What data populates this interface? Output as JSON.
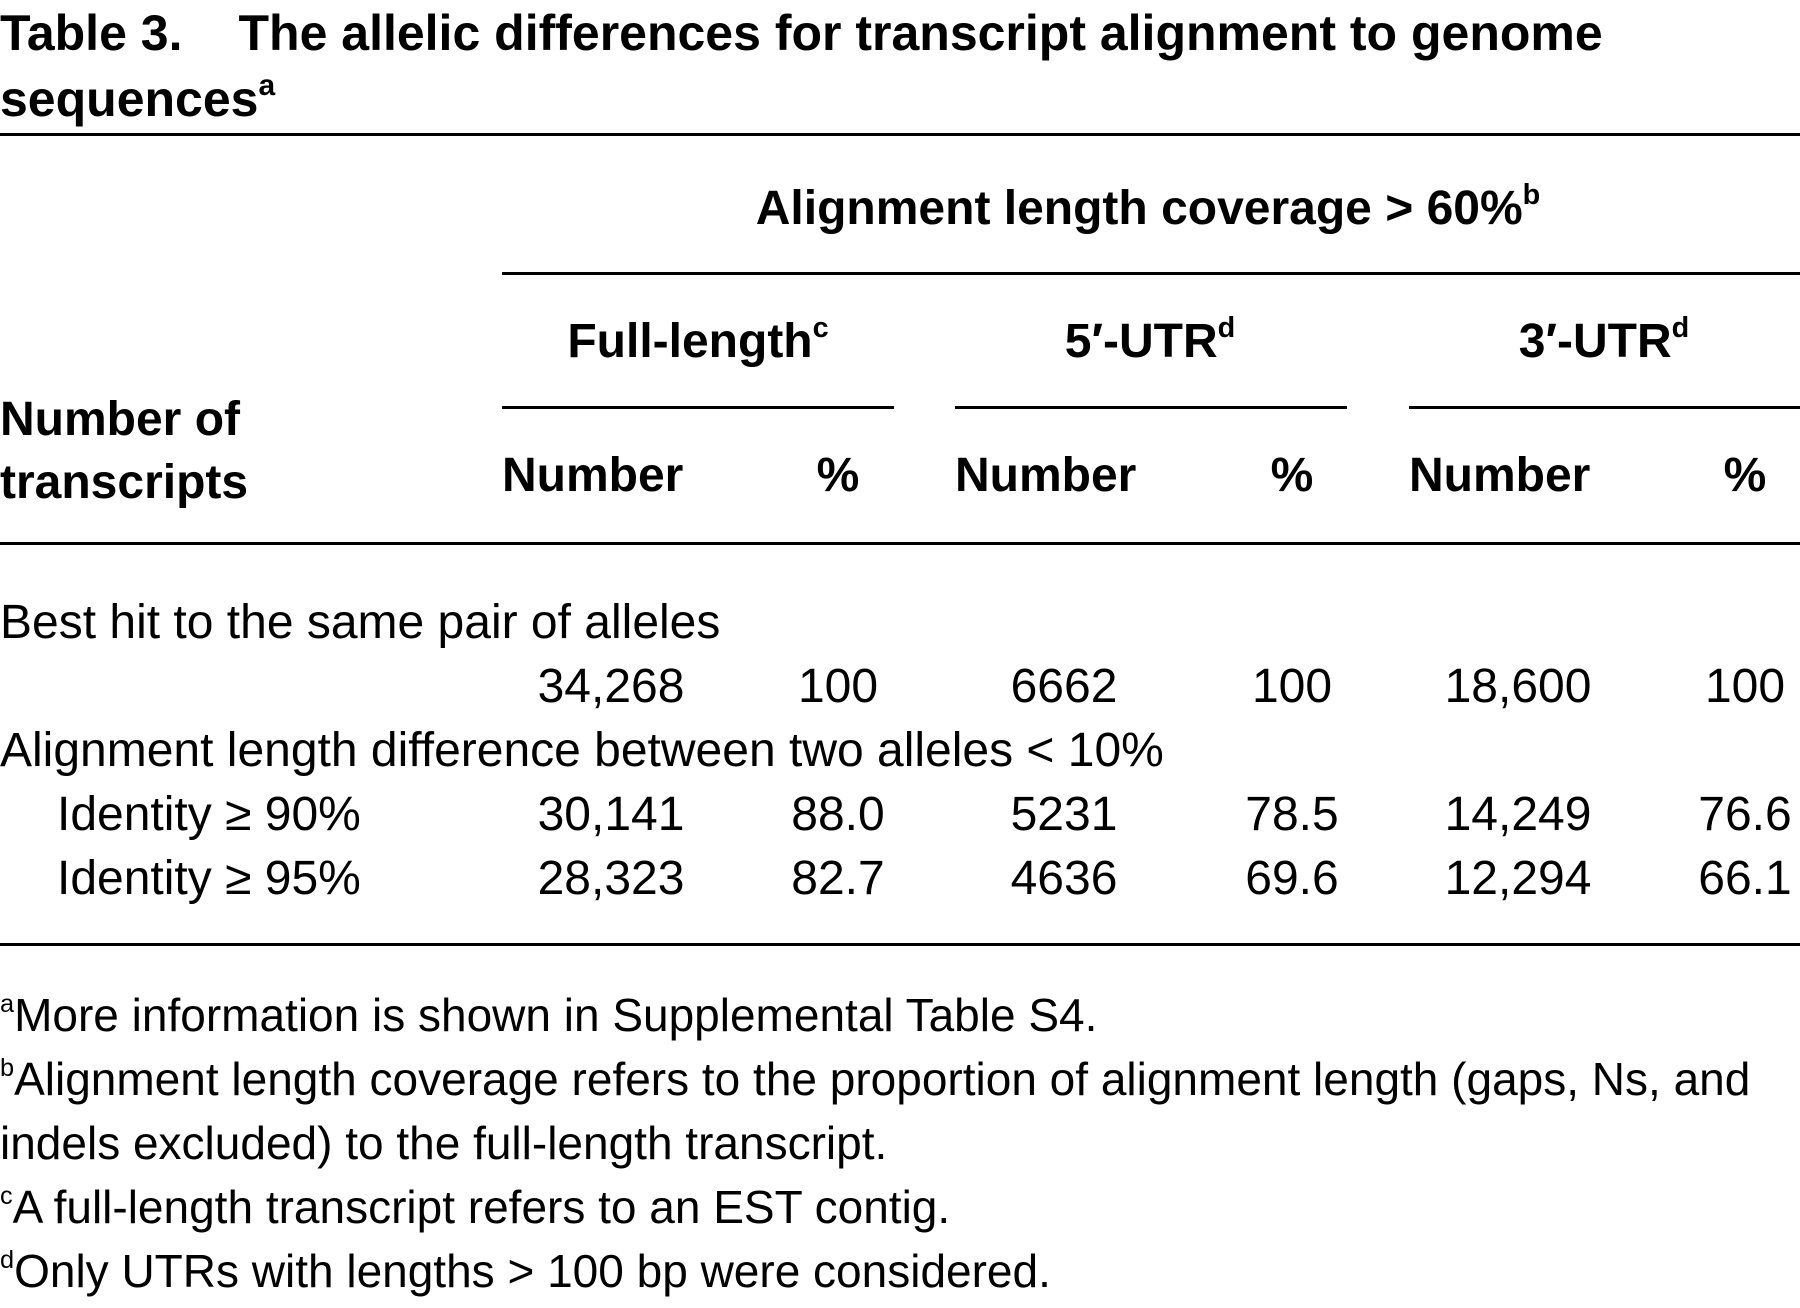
{
  "title": {
    "label": "Table 3.",
    "text": "The allelic differences for transcript alignment to genome sequences",
    "note": "a"
  },
  "table": {
    "row_header": "Number of transcripts",
    "spanner": {
      "text": "Alignment length coverage > 60%",
      "note": "b"
    },
    "groups": [
      {
        "text": "Full-length",
        "note": "c"
      },
      {
        "text": "5′-UTR",
        "note": "d"
      },
      {
        "text": "3′-UTR",
        "note": "d"
      }
    ],
    "subheaders": [
      "Number",
      "%",
      "Number",
      "%",
      "Number",
      "%"
    ],
    "sections": [
      {
        "label": "Best hit to the same pair of alleles",
        "rows": [
          {
            "cells": [
              "34,268",
              "100",
              "6662",
              "100",
              "18,600",
              "100"
            ]
          }
        ]
      },
      {
        "label": "Alignment length difference between two alleles < 10%",
        "rows": [
          {
            "label": "Identity ≥ 90%",
            "cells": [
              "30,141",
              "88.0",
              "5231",
              "78.5",
              "14,249",
              "76.6"
            ]
          },
          {
            "label": "Identity ≥ 95%",
            "cells": [
              "28,323",
              "82.7",
              "4636",
              "69.6",
              "12,294",
              "66.1"
            ]
          }
        ]
      }
    ]
  },
  "footnotes": [
    {
      "mark": "a",
      "text": "More information is shown in Supplemental Table S4."
    },
    {
      "mark": "b",
      "text": "Alignment length coverage refers to the proportion of alignment length (gaps, Ns, and indels excluded) to the full-length transcript."
    },
    {
      "mark": "c",
      "text": "A full-length transcript refers to an EST contig."
    },
    {
      "mark": "d",
      "text": "Only UTRs with lengths > 100 bp were considered."
    }
  ]
}
